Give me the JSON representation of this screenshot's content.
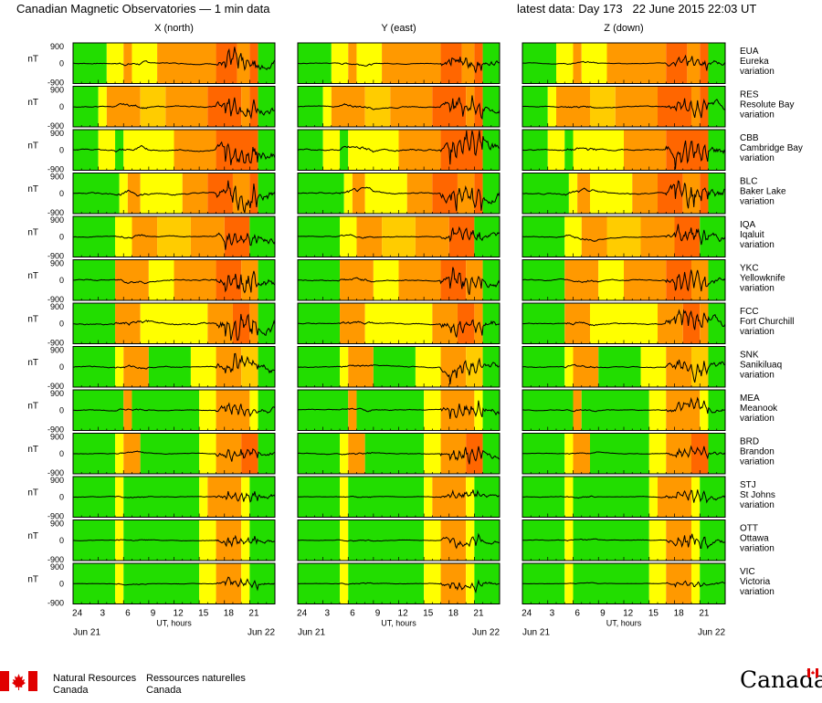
{
  "header": {
    "title": "Canadian Magnetic Observatories — 1 min data",
    "latest": "latest data: Day 173   22 June 2015 22:03 UT"
  },
  "colors": {
    "green": "#22dd00",
    "yellow": "#ffff00",
    "lightorange": "#ffcc00",
    "orange": "#ff9900",
    "darkorange": "#ff6600"
  },
  "chart_data": {
    "type": "line",
    "title": "Canadian Magnetic Observatories — 1 min data",
    "columns": [
      "X (north)",
      "Y (east)",
      "Z (down)"
    ],
    "x_ticks": [
      "24",
      "3",
      "6",
      "9",
      "12",
      "15",
      "18",
      "21"
    ],
    "xlabel": "UT, hours",
    "date_start": "Jun 21",
    "date_end": "Jun 22",
    "xlim": [
      0,
      24
    ],
    "ylabel": "nT",
    "ylim": [
      -900,
      900
    ],
    "y_ticks": [
      "900",
      "0",
      "-900"
    ],
    "stations": [
      {
        "code": "EUA",
        "name": "Eureka",
        "label": "variation",
        "amps": [
          0.6,
          0.45,
          0.35
        ],
        "colors": [
          [
            "g",
            0,
            4
          ],
          [
            "y",
            4,
            6
          ],
          [
            "o",
            6,
            7
          ],
          [
            "y",
            7,
            10
          ],
          [
            "o",
            10,
            17
          ],
          [
            "d",
            17,
            19.5
          ],
          [
            "o",
            19.5,
            21
          ],
          [
            "d",
            21,
            22
          ],
          [
            "g",
            22,
            24
          ]
        ]
      },
      {
        "code": "RES",
        "name": "Resolute Bay",
        "label": "variation",
        "amps": [
          0.6,
          0.6,
          0.5
        ],
        "colors": [
          [
            "g",
            0,
            3
          ],
          [
            "y",
            3,
            4
          ],
          [
            "o",
            4,
            8
          ],
          [
            "l",
            8,
            11
          ],
          [
            "o",
            11,
            16
          ],
          [
            "d",
            16,
            20
          ],
          [
            "o",
            20,
            21
          ],
          [
            "d",
            21,
            22
          ],
          [
            "g",
            22,
            24
          ]
        ]
      },
      {
        "code": "CBB",
        "name": "Cambridge Bay",
        "label": "variation",
        "amps": [
          0.75,
          0.9,
          0.7
        ],
        "colors": [
          [
            "g",
            0,
            3
          ],
          [
            "y",
            3,
            5
          ],
          [
            "g",
            5,
            6
          ],
          [
            "y",
            6,
            12
          ],
          [
            "o",
            12,
            17
          ],
          [
            "d",
            17,
            22
          ],
          [
            "g",
            22,
            24
          ]
        ]
      },
      {
        "code": "BLC",
        "name": "Baker Lake",
        "label": "variation",
        "amps": [
          0.8,
          0.8,
          0.75
        ],
        "colors": [
          [
            "g",
            0,
            5.5
          ],
          [
            "y",
            5.5,
            6.5
          ],
          [
            "o",
            6.5,
            8
          ],
          [
            "y",
            8,
            13
          ],
          [
            "o",
            13,
            16
          ],
          [
            "d",
            16,
            19
          ],
          [
            "o",
            19,
            21
          ],
          [
            "d",
            21,
            22
          ],
          [
            "g",
            22,
            24
          ]
        ]
      },
      {
        "code": "IQA",
        "name": "Iqaluit",
        "label": "variation",
        "amps": [
          0.5,
          0.45,
          0.55
        ],
        "colors": [
          [
            "g",
            0,
            5
          ],
          [
            "y",
            5,
            7
          ],
          [
            "o",
            7,
            10
          ],
          [
            "l",
            10,
            14
          ],
          [
            "o",
            14,
            18
          ],
          [
            "d",
            18,
            21
          ],
          [
            "g",
            21,
            24
          ]
        ]
      },
      {
        "code": "YKC",
        "name": "Yellowknife",
        "label": "variation",
        "amps": [
          0.7,
          0.65,
          0.6
        ],
        "colors": [
          [
            "g",
            0,
            5
          ],
          [
            "o",
            5,
            9
          ],
          [
            "y",
            9,
            12
          ],
          [
            "o",
            12,
            17
          ],
          [
            "d",
            17,
            20
          ],
          [
            "o",
            20,
            22
          ],
          [
            "g",
            22,
            24
          ]
        ]
      },
      {
        "code": "FCC",
        "name": "Fort Churchill",
        "label": "variation",
        "amps": [
          0.8,
          0.6,
          0.65
        ],
        "colors": [
          [
            "g",
            0,
            5
          ],
          [
            "o",
            5,
            8
          ],
          [
            "y",
            8,
            16
          ],
          [
            "o",
            16,
            19
          ],
          [
            "d",
            19,
            21
          ],
          [
            "o",
            21,
            22
          ],
          [
            "g",
            22,
            24
          ]
        ]
      },
      {
        "code": "SNK",
        "name": "Sanikiluaq",
        "label": "variation",
        "amps": [
          0.6,
          0.5,
          0.55
        ],
        "colors": [
          [
            "g",
            0,
            5
          ],
          [
            "y",
            5,
            6
          ],
          [
            "o",
            6,
            9
          ],
          [
            "g",
            9,
            14
          ],
          [
            "y",
            14,
            17
          ],
          [
            "o",
            17,
            20
          ],
          [
            "l",
            20,
            22
          ],
          [
            "g",
            22,
            24
          ]
        ]
      },
      {
        "code": "MEA",
        "name": "Meanook",
        "label": "variation",
        "amps": [
          0.4,
          0.5,
          0.4
        ],
        "colors": [
          [
            "g",
            0,
            6
          ],
          [
            "o",
            6,
            7
          ],
          [
            "g",
            7,
            15
          ],
          [
            "y",
            15,
            17
          ],
          [
            "o",
            17,
            21
          ],
          [
            "y",
            21,
            22
          ],
          [
            "g",
            22,
            24
          ]
        ]
      },
      {
        "code": "BRD",
        "name": "Brandon",
        "label": "variation",
        "amps": [
          0.35,
          0.45,
          0.3
        ],
        "colors": [
          [
            "g",
            0,
            5
          ],
          [
            "y",
            5,
            6
          ],
          [
            "o",
            6,
            8
          ],
          [
            "g",
            8,
            15
          ],
          [
            "y",
            15,
            17
          ],
          [
            "o",
            17,
            20
          ],
          [
            "d",
            20,
            22
          ],
          [
            "g",
            22,
            24
          ]
        ]
      },
      {
        "code": "STJ",
        "name": "St Johns",
        "label": "variation",
        "amps": [
          0.35,
          0.3,
          0.35
        ],
        "colors": [
          [
            "g",
            0,
            5
          ],
          [
            "y",
            5,
            6
          ],
          [
            "g",
            6,
            15
          ],
          [
            "y",
            15,
            16
          ],
          [
            "o",
            16,
            20
          ],
          [
            "y",
            20,
            21
          ],
          [
            "g",
            21,
            24
          ]
        ]
      },
      {
        "code": "OTT",
        "name": "Ottawa",
        "label": "variation",
        "amps": [
          0.3,
          0.3,
          0.4
        ],
        "colors": [
          [
            "g",
            0,
            5
          ],
          [
            "y",
            5,
            6
          ],
          [
            "g",
            6,
            15
          ],
          [
            "y",
            15,
            17
          ],
          [
            "o",
            17,
            20
          ],
          [
            "y",
            20,
            21
          ],
          [
            "g",
            21,
            24
          ]
        ]
      },
      {
        "code": "VIC",
        "name": "Victoria",
        "label": "variation",
        "amps": [
          0.25,
          0.3,
          0.2
        ],
        "colors": [
          [
            "g",
            0,
            5
          ],
          [
            "y",
            5,
            6
          ],
          [
            "g",
            6,
            15
          ],
          [
            "y",
            15,
            17
          ],
          [
            "o",
            17,
            20
          ],
          [
            "y",
            20,
            21
          ],
          [
            "g",
            21,
            24
          ]
        ]
      }
    ]
  },
  "footer": {
    "nrcan_en_1": "Natural Resources",
    "nrcan_en_2": "Canada",
    "nrcan_fr_1": "Ressources naturelles",
    "nrcan_fr_2": "Canada",
    "wordmark": "Canada"
  }
}
